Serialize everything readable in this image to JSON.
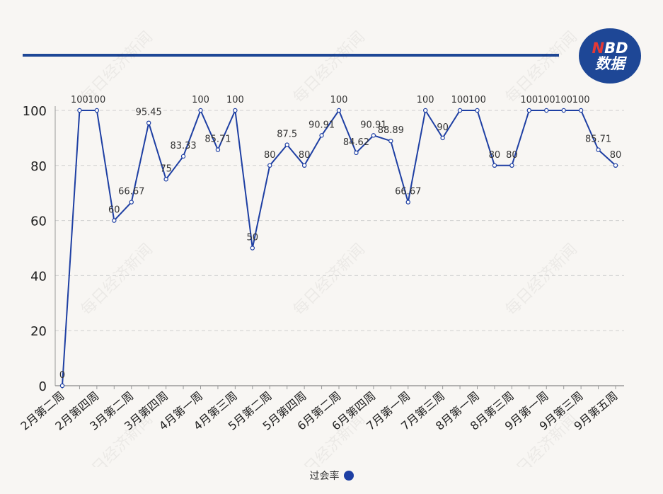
{
  "logo": {
    "line1_n": "N",
    "line1_rest": "BD",
    "line2": "数据"
  },
  "legend": {
    "label": "过会率",
    "color": "#1e3fa3"
  },
  "watermark": "每日经济新闻",
  "chart_data": {
    "type": "line",
    "ylim": [
      0,
      100
    ],
    "yticks": [
      0,
      20,
      40,
      60,
      80,
      100
    ],
    "grid": "horizontal-dashed",
    "legend_position": "bottom-center",
    "line_color": "#1e3fa3",
    "x_tick_labels": [
      "2月第二周",
      "2月第四周",
      "3月第二周",
      "3月第四周",
      "4月第一周",
      "4月第三周",
      "5月第二周",
      "5月第四周",
      "6月第二周",
      "6月第四周",
      "7月第一周",
      "7月第三周",
      "8月第一周",
      "8月第三周",
      "9月第一周",
      "9月第三周",
      "9月第五周"
    ],
    "series": [
      {
        "name": "过会率",
        "values": [
          0,
          100,
          100,
          60,
          66.67,
          95.45,
          75,
          83.33,
          100,
          85.71,
          100,
          50,
          80,
          87.5,
          80,
          90.91,
          100,
          84.62,
          90.91,
          88.89,
          66.67,
          100,
          90,
          100,
          100,
          80,
          80,
          100,
          100,
          100,
          100,
          85.71,
          80
        ],
        "labels": [
          "0",
          "100",
          "100",
          "60",
          "66.67",
          "95.45",
          "75",
          "83.33",
          "100",
          "85.71",
          "100",
          "50",
          "80",
          "87.5",
          "80",
          "90.91",
          "100",
          "84.62",
          "90.91",
          "88.89",
          "66.67",
          "100",
          "90",
          "100",
          "100",
          "80",
          "80",
          "100",
          "100",
          "100",
          "100",
          "85.71",
          "80"
        ]
      }
    ]
  }
}
